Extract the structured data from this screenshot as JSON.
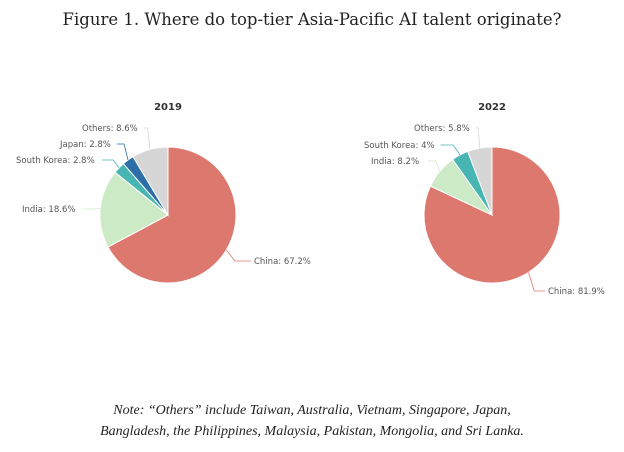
{
  "figure_title": "Figure 1. Where do top-tier Asia-Pacific AI talent originate?",
  "note": {
    "line1": "Note: “Others” include Taiwan, Australia, Vietnam, Singapore, Japan,",
    "line2": "Bangladesh, the Philippines, Malaysia, Pakistan, Mongolia, and Sri Lanka."
  },
  "colors": {
    "China": "#dc786d",
    "India": "#cdeac6",
    "South Korea": "#47b5b2",
    "Japan": "#2c6ea7",
    "Others": "#d6d6d6"
  },
  "chart_data": [
    {
      "type": "pie",
      "title": "2019",
      "slices": [
        {
          "label": "China",
          "value": 67.2,
          "text": "China: 67.2%"
        },
        {
          "label": "India",
          "value": 18.6,
          "text": "India: 18.6%"
        },
        {
          "label": "South Korea",
          "value": 2.8,
          "text": "South Korea: 2.8%"
        },
        {
          "label": "Japan",
          "value": 2.8,
          "text": "Japan: 2.8%"
        },
        {
          "label": "Others",
          "value": 8.6,
          "text": "Others: 8.6%"
        }
      ]
    },
    {
      "type": "pie",
      "title": "2022",
      "slices": [
        {
          "label": "China",
          "value": 81.9,
          "text": "China: 81.9%"
        },
        {
          "label": "India",
          "value": 8.2,
          "text": "India: 8.2%"
        },
        {
          "label": "South Korea",
          "value": 4,
          "text": "South Korea: 4%"
        },
        {
          "label": "Others",
          "value": 5.8,
          "text": "Others: 5.8%"
        }
      ]
    }
  ]
}
